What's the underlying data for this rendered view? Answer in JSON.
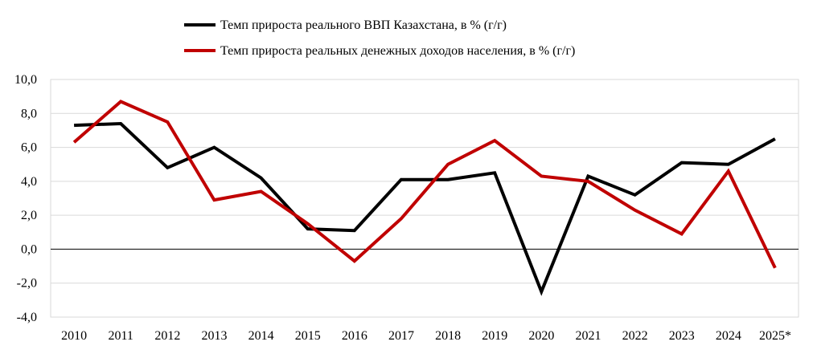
{
  "chart_data": {
    "type": "line",
    "categories": [
      "2010",
      "2011",
      "2012",
      "2013",
      "2014",
      "2015",
      "2016",
      "2017",
      "2018",
      "2019",
      "2020",
      "2021",
      "2022",
      "2023",
      "2024",
      "2025*"
    ],
    "series": [
      {
        "name": "Темп прироста реального ВВП Казахстана, в % (г/г)",
        "color": "#000000",
        "values": [
          7.3,
          7.4,
          4.8,
          6.0,
          4.2,
          1.2,
          1.1,
          4.1,
          4.1,
          4.5,
          -2.5,
          4.3,
          3.2,
          5.1,
          5.0,
          6.5
        ]
      },
      {
        "name": "Темп прироста реальных денежных доходов населения, в % (г/г)",
        "color": "#c00000",
        "values": [
          6.3,
          8.7,
          7.5,
          2.9,
          3.4,
          1.5,
          -0.7,
          1.8,
          5.0,
          6.4,
          4.3,
          4.0,
          2.3,
          0.9,
          4.6,
          -1.1
        ]
      }
    ],
    "ylim": [
      -4.0,
      10.0
    ],
    "yticks": [
      -4.0,
      -2.0,
      0.0,
      2.0,
      4.0,
      6.0,
      8.0,
      10.0
    ],
    "ytick_labels": [
      "-4,0",
      "-2,0",
      "0,0",
      "2,0",
      "4,0",
      "6,0",
      "8,0",
      "10,0"
    ],
    "grid": true,
    "legend_position": "top",
    "title": "",
    "xlabel": "",
    "ylabel": ""
  }
}
